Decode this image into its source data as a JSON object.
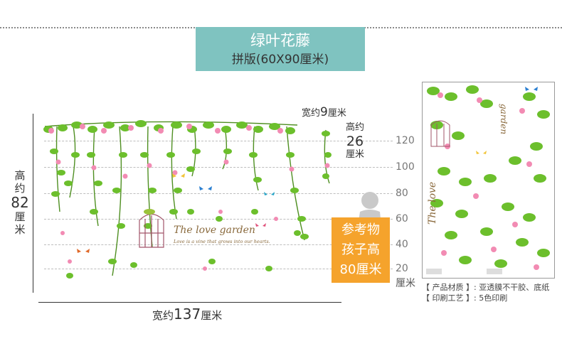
{
  "title": {
    "main": "绿叶花藤",
    "sub": "拼版(60X90厘米)"
  },
  "dims": {
    "height_small": "高约",
    "height_big": "82",
    "height_unit": "厘米",
    "width_small": "宽约",
    "width_big": "137",
    "width_unit": "厘米",
    "vine_width_small": "宽约",
    "vine_width_big": "9",
    "vine_width_unit": "厘米",
    "vine_height_small": "高约",
    "vine_height_big": "26",
    "vine_height_unit": "厘米"
  },
  "scale": {
    "ticks": [
      "120",
      "100",
      "80",
      "60",
      "40",
      "20"
    ],
    "unit": "厘米"
  },
  "reference": {
    "line1": "参考物",
    "line2": "孩子高",
    "line3": "80厘米"
  },
  "art": {
    "heading": "The love garden",
    "tagline": "Love is a vine that grows into our hearts."
  },
  "poster": {
    "script_title": "The love",
    "script_sub": "garden"
  },
  "material": {
    "label1": "【 产品材质 】",
    "value1": "亚透膜不干胶、底纸",
    "label2": "【 印刷工艺 】",
    "value2": "5色印刷"
  },
  "colors": {
    "teal": "#7fc3c0",
    "orange": "#f5a32c",
    "leaf": "#6cbf2c",
    "flower": "#f28bb3"
  }
}
